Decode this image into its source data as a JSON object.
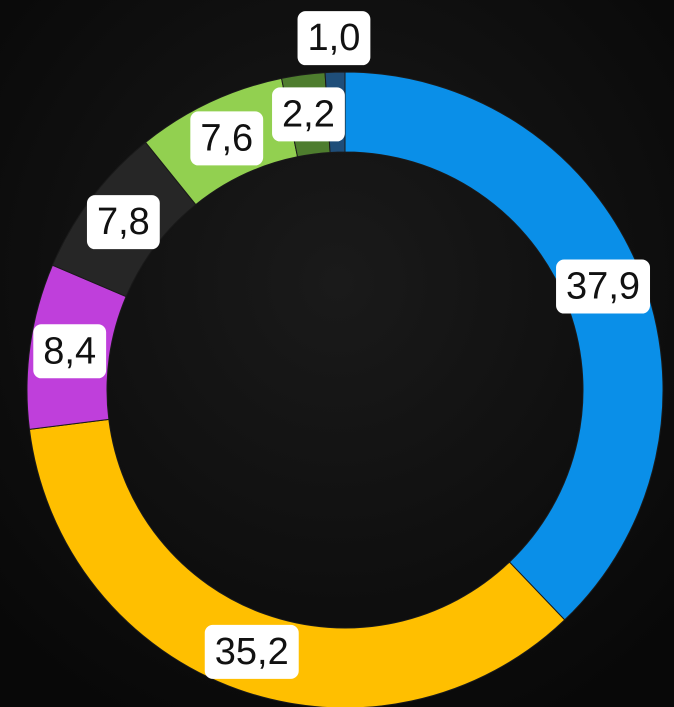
{
  "chart_data": {
    "type": "donut",
    "values": [
      37.9,
      35.2,
      8.4,
      7.8,
      7.6,
      2.2,
      1.0
    ],
    "value_labels": [
      "37,9",
      "35,2",
      "8,4",
      "7,8",
      "7,6",
      "2,2",
      "1,0"
    ],
    "colors": [
      "#0a8fe8",
      "#ffbf00",
      "#bf3fdb",
      "#262626",
      "#92d050",
      "#4e7d2e",
      "#1f4e79"
    ]
  }
}
